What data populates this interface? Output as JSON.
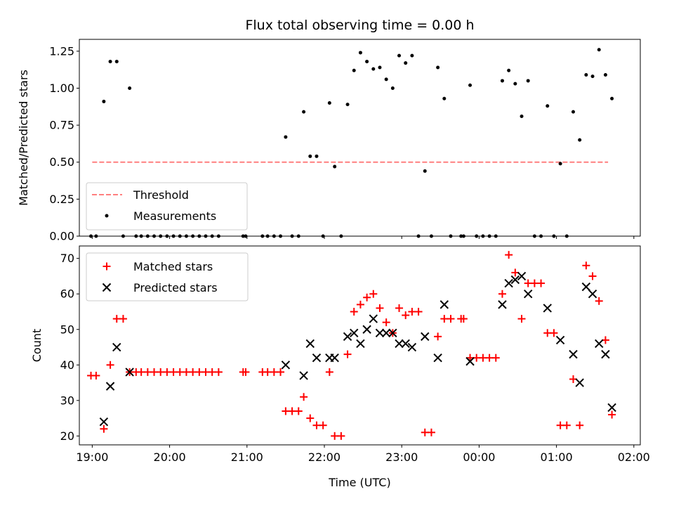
{
  "chart_data": [
    {
      "type": "scatter",
      "title": "Flux total observing time = 0.00 h",
      "xlabel": "",
      "ylabel": "Matched/Predicted stars",
      "xlim": [
        "18:50",
        "02:05"
      ],
      "ylim": [
        0,
        1.33
      ],
      "yticks": [
        0.0,
        0.25,
        0.5,
        0.75,
        1.0,
        1.25
      ],
      "ytick_labels": [
        "0.00",
        "0.25",
        "0.50",
        "0.75",
        "1.00",
        "1.25"
      ],
      "xticks": [
        "19:00",
        "20:00",
        "21:00",
        "22:00",
        "23:00",
        "00:00",
        "01:00",
        "02:00"
      ],
      "xtick_labels_shown": false,
      "legend_position": "lower-left",
      "threshold": {
        "name": "Threshold",
        "y": 0.5,
        "x_range": [
          "19:00",
          "01:40"
        ],
        "color": "#ff7f7f",
        "style": "dashed"
      },
      "series": [
        {
          "name": "Measurements",
          "color": "#000000",
          "marker": "dot",
          "points": [
            [
              "18:59",
              0
            ],
            [
              "19:03",
              0
            ],
            [
              "19:09",
              0.91
            ],
            [
              "19:14",
              1.18
            ],
            [
              "19:19",
              1.18
            ],
            [
              "19:24",
              0
            ],
            [
              "19:29",
              1.0
            ],
            [
              "19:34",
              0
            ],
            [
              "19:38",
              0
            ],
            [
              "19:43",
              0
            ],
            [
              "19:48",
              0
            ],
            [
              "19:53",
              0
            ],
            [
              "19:58",
              0
            ],
            [
              "20:03",
              0
            ],
            [
              "20:08",
              0
            ],
            [
              "20:13",
              0
            ],
            [
              "20:18",
              0
            ],
            [
              "20:23",
              0
            ],
            [
              "20:28",
              0
            ],
            [
              "20:33",
              0
            ],
            [
              "20:38",
              0
            ],
            [
              "20:57",
              0
            ],
            [
              "20:59",
              0
            ],
            [
              "21:12",
              0
            ],
            [
              "21:16",
              0
            ],
            [
              "21:21",
              0
            ],
            [
              "21:26",
              0
            ],
            [
              "21:30",
              0.67
            ],
            [
              "21:35",
              0
            ],
            [
              "21:40",
              0
            ],
            [
              "21:44",
              0.84
            ],
            [
              "21:49",
              0.54
            ],
            [
              "21:54",
              0.54
            ],
            [
              "21:59",
              0
            ],
            [
              "22:04",
              0.9
            ],
            [
              "22:08",
              0.47
            ],
            [
              "22:13",
              0
            ],
            [
              "22:18",
              0.89
            ],
            [
              "22:23",
              1.12
            ],
            [
              "22:28",
              1.24
            ],
            [
              "22:33",
              1.18
            ],
            [
              "22:38",
              1.13
            ],
            [
              "22:43",
              1.14
            ],
            [
              "22:48",
              1.06
            ],
            [
              "22:53",
              1.0
            ],
            [
              "22:58",
              1.22
            ],
            [
              "23:03",
              1.17
            ],
            [
              "23:08",
              1.22
            ],
            [
              "23:13",
              0
            ],
            [
              "23:18",
              0.44
            ],
            [
              "23:23",
              0
            ],
            [
              "23:28",
              1.14
            ],
            [
              "23:33",
              0.93
            ],
            [
              "23:38",
              0
            ],
            [
              "23:46",
              0
            ],
            [
              "23:48",
              0
            ],
            [
              "23:53",
              1.02
            ],
            [
              "23:58",
              0
            ],
            [
              "00:03",
              0
            ],
            [
              "00:08",
              0
            ],
            [
              "00:13",
              0
            ],
            [
              "00:18",
              1.05
            ],
            [
              "00:23",
              1.12
            ],
            [
              "00:28",
              1.03
            ],
            [
              "00:33",
              0.81
            ],
            [
              "00:38",
              1.05
            ],
            [
              "00:43",
              0
            ],
            [
              "00:48",
              0
            ],
            [
              "00:53",
              0.88
            ],
            [
              "00:58",
              0
            ],
            [
              "01:03",
              0.49
            ],
            [
              "01:08",
              0
            ],
            [
              "01:13",
              0.84
            ],
            [
              "01:18",
              0.65
            ],
            [
              "01:23",
              1.09
            ],
            [
              "01:28",
              1.08
            ],
            [
              "01:33",
              1.26
            ],
            [
              "01:38",
              1.09
            ],
            [
              "01:43",
              0.93
            ]
          ]
        }
      ]
    },
    {
      "type": "scatter",
      "title": "",
      "xlabel": "Time (UTC)",
      "ylabel": "Count",
      "xlim": [
        "18:50",
        "02:05"
      ],
      "ylim": [
        17.5,
        73.5
      ],
      "yticks": [
        20,
        30,
        40,
        50,
        60,
        70
      ],
      "ytick_labels": [
        "20",
        "30",
        "40",
        "50",
        "60",
        "70"
      ],
      "xticks": [
        "19:00",
        "20:00",
        "21:00",
        "22:00",
        "23:00",
        "00:00",
        "01:00",
        "02:00"
      ],
      "xtick_labels": [
        "19:00",
        "20:00",
        "21:00",
        "22:00",
        "23:00",
        "00:00",
        "01:00",
        "02:00"
      ],
      "legend_position": "upper-left",
      "series": [
        {
          "name": "Matched stars",
          "color": "#ff0000",
          "marker": "plus",
          "points": [
            [
              "18:59",
              37
            ],
            [
              "19:03",
              37
            ],
            [
              "19:09",
              22
            ],
            [
              "19:14",
              40
            ],
            [
              "19:19",
              53
            ],
            [
              "19:24",
              53
            ],
            [
              "19:29",
              38
            ],
            [
              "19:34",
              38
            ],
            [
              "19:38",
              38
            ],
            [
              "19:43",
              38
            ],
            [
              "19:48",
              38
            ],
            [
              "19:53",
              38
            ],
            [
              "19:58",
              38
            ],
            [
              "20:03",
              38
            ],
            [
              "20:08",
              38
            ],
            [
              "20:13",
              38
            ],
            [
              "20:18",
              38
            ],
            [
              "20:23",
              38
            ],
            [
              "20:28",
              38
            ],
            [
              "20:33",
              38
            ],
            [
              "20:38",
              38
            ],
            [
              "20:57",
              38
            ],
            [
              "20:59",
              38
            ],
            [
              "21:12",
              38
            ],
            [
              "21:16",
              38
            ],
            [
              "21:21",
              38
            ],
            [
              "21:26",
              38
            ],
            [
              "21:30",
              27
            ],
            [
              "21:35",
              27
            ],
            [
              "21:40",
              27
            ],
            [
              "21:44",
              31
            ],
            [
              "21:49",
              25
            ],
            [
              "21:54",
              23
            ],
            [
              "21:59",
              23
            ],
            [
              "22:04",
              38
            ],
            [
              "22:08",
              20
            ],
            [
              "22:13",
              20
            ],
            [
              "22:18",
              43
            ],
            [
              "22:23",
              55
            ],
            [
              "22:28",
              57
            ],
            [
              "22:33",
              59
            ],
            [
              "22:38",
              60
            ],
            [
              "22:43",
              56
            ],
            [
              "22:48",
              52
            ],
            [
              "22:53",
              49
            ],
            [
              "22:58",
              56
            ],
            [
              "23:03",
              54
            ],
            [
              "23:08",
              55
            ],
            [
              "23:13",
              55
            ],
            [
              "23:18",
              21
            ],
            [
              "23:23",
              21
            ],
            [
              "23:28",
              48
            ],
            [
              "23:33",
              53
            ],
            [
              "23:38",
              53
            ],
            [
              "23:46",
              53
            ],
            [
              "23:48",
              53
            ],
            [
              "23:53",
              42
            ],
            [
              "23:58",
              42
            ],
            [
              "00:03",
              42
            ],
            [
              "00:08",
              42
            ],
            [
              "00:13",
              42
            ],
            [
              "00:18",
              60
            ],
            [
              "00:23",
              71
            ],
            [
              "00:28",
              66
            ],
            [
              "00:33",
              53
            ],
            [
              "00:38",
              63
            ],
            [
              "00:43",
              63
            ],
            [
              "00:48",
              63
            ],
            [
              "00:53",
              49
            ],
            [
              "00:58",
              49
            ],
            [
              "01:03",
              23
            ],
            [
              "01:08",
              23
            ],
            [
              "01:13",
              36
            ],
            [
              "01:18",
              23
            ],
            [
              "01:23",
              68
            ],
            [
              "01:28",
              65
            ],
            [
              "01:33",
              58
            ],
            [
              "01:38",
              47
            ],
            [
              "01:43",
              26
            ]
          ]
        },
        {
          "name": "Predicted stars",
          "color": "#000000",
          "marker": "x",
          "points": [
            [
              "19:09",
              24
            ],
            [
              "19:14",
              34
            ],
            [
              "19:19",
              45
            ],
            [
              "19:29",
              38
            ],
            [
              "21:30",
              40
            ],
            [
              "21:44",
              37
            ],
            [
              "21:49",
              46
            ],
            [
              "21:54",
              42
            ],
            [
              "22:04",
              42
            ],
            [
              "22:08",
              42
            ],
            [
              "22:18",
              48
            ],
            [
              "22:23",
              49
            ],
            [
              "22:28",
              46
            ],
            [
              "22:33",
              50
            ],
            [
              "22:38",
              53
            ],
            [
              "22:43",
              49
            ],
            [
              "22:48",
              49
            ],
            [
              "22:53",
              49
            ],
            [
              "22:58",
              46
            ],
            [
              "23:03",
              46
            ],
            [
              "23:08",
              45
            ],
            [
              "23:18",
              48
            ],
            [
              "23:28",
              42
            ],
            [
              "23:33",
              57
            ],
            [
              "23:53",
              41
            ],
            [
              "00:18",
              57
            ],
            [
              "00:23",
              63
            ],
            [
              "00:28",
              64
            ],
            [
              "00:33",
              65
            ],
            [
              "00:38",
              60
            ],
            [
              "00:53",
              56
            ],
            [
              "01:03",
              47
            ],
            [
              "01:13",
              43
            ],
            [
              "01:18",
              35
            ],
            [
              "01:23",
              62
            ],
            [
              "01:28",
              60
            ],
            [
              "01:33",
              46
            ],
            [
              "01:38",
              43
            ],
            [
              "01:43",
              28
            ]
          ]
        }
      ]
    }
  ]
}
